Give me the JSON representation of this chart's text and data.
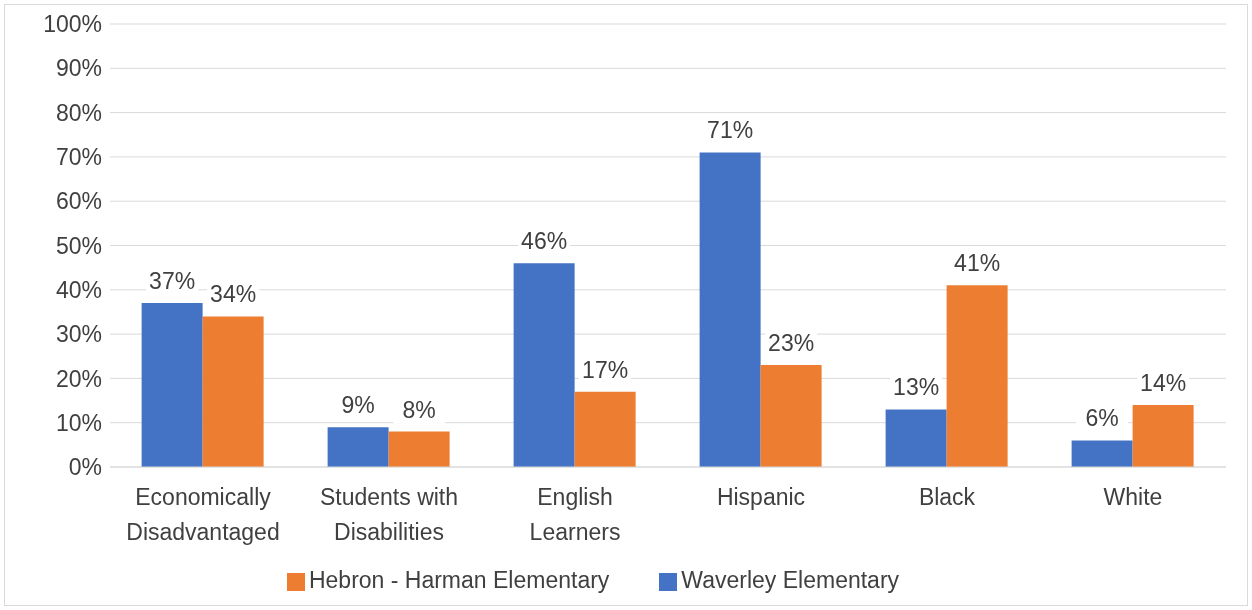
{
  "chart_data": {
    "type": "bar",
    "categories": [
      "Economically Disadvantaged",
      "Students with Disabilities",
      "English Learners",
      "Hispanic",
      "Black",
      "White"
    ],
    "series": [
      {
        "name": "Waverley Elementary",
        "color": "#4472c4",
        "values": [
          37,
          9,
          46,
          71,
          13,
          6
        ],
        "value_labels": [
          "37%",
          "9%",
          "46%",
          "71%",
          "13%",
          "6%"
        ]
      },
      {
        "name": "Hebron - Harman Elementary",
        "color": "#ed7d31",
        "values": [
          34,
          8,
          17,
          23,
          41,
          14
        ],
        "value_labels": [
          "34%",
          "8%",
          "17%",
          "23%",
          "41%",
          "14%"
        ]
      }
    ],
    "ylim": [
      0,
      100
    ],
    "yticks": [
      {
        "value": 0,
        "label": "0%"
      },
      {
        "value": 10,
        "label": "10%"
      },
      {
        "value": 20,
        "label": "20%"
      },
      {
        "value": 30,
        "label": "30%"
      },
      {
        "value": 40,
        "label": "40%"
      },
      {
        "value": 50,
        "label": "50%"
      },
      {
        "value": 60,
        "label": "60%"
      },
      {
        "value": 70,
        "label": "70%"
      },
      {
        "value": 80,
        "label": "80%"
      },
      {
        "value": 90,
        "label": "90%"
      },
      {
        "value": 100,
        "label": "100%"
      }
    ],
    "grid": "y",
    "legend": "bottom"
  }
}
